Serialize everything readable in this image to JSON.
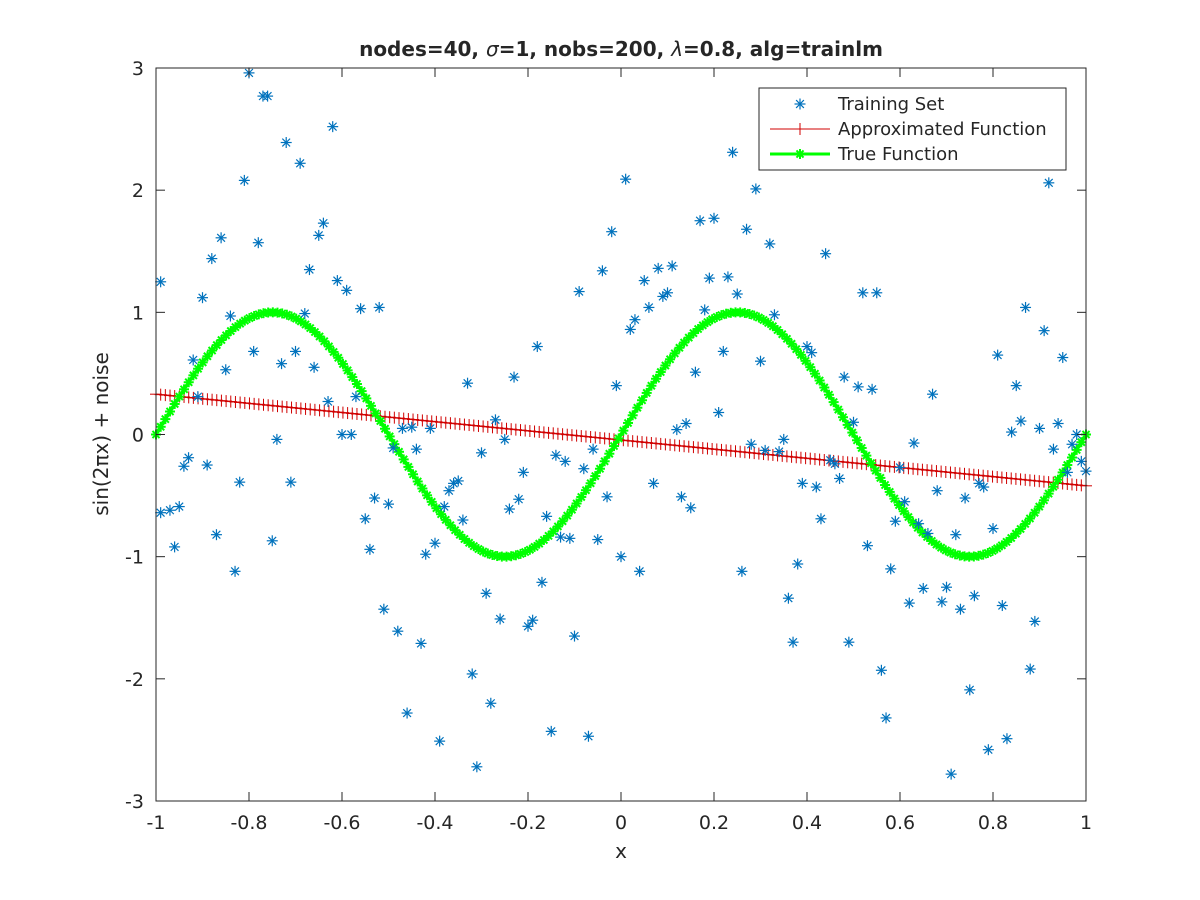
{
  "chart_data": {
    "type": "scatter",
    "title": "nodes=40, σ=1, nobs=200, λ=0.8, alg=trainlm",
    "title_parts": {
      "p1": "nodes=40, ",
      "sigma": "σ",
      "p2": "=1, nobs=200, ",
      "lambda": "λ",
      "p3": "=0.8, alg=trainlm"
    },
    "xlabel": "x",
    "ylabel": "sin(2πx) + noise",
    "xlim": [
      -1,
      1
    ],
    "ylim": [
      -3,
      3
    ],
    "x_ticks": [
      "-1",
      "-0.8",
      "-0.6",
      "-0.4",
      "-0.2",
      "0",
      "0.2",
      "0.4",
      "0.6",
      "0.8",
      "1"
    ],
    "y_ticks": [
      "-3",
      "-2",
      "-1",
      "0",
      "1",
      "2",
      "3"
    ],
    "grid": false,
    "legend_position": "top-right",
    "series": [
      {
        "name": "Training Set",
        "kind": "scatter",
        "marker": "asterisk",
        "color": "#0072BD",
        "points": [
          [
            -0.99,
            -0.64
          ],
          [
            -0.99,
            1.25
          ],
          [
            -0.97,
            -0.62
          ],
          [
            -0.96,
            -0.92
          ],
          [
            -0.95,
            -0.59
          ],
          [
            -0.94,
            -0.26
          ],
          [
            -0.93,
            -0.19
          ],
          [
            -0.92,
            0.61
          ],
          [
            -0.91,
            0.31
          ],
          [
            -0.9,
            1.12
          ],
          [
            -0.89,
            -0.25
          ],
          [
            -0.88,
            1.44
          ],
          [
            -0.87,
            -0.82
          ],
          [
            -0.86,
            1.61
          ],
          [
            -0.85,
            0.53
          ],
          [
            -0.84,
            0.97
          ],
          [
            -0.83,
            -1.12
          ],
          [
            -0.82,
            -0.39
          ],
          [
            -0.81,
            2.08
          ],
          [
            -0.8,
            2.96
          ],
          [
            -0.79,
            0.68
          ],
          [
            -0.78,
            1.57
          ],
          [
            -0.77,
            2.77
          ],
          [
            -0.76,
            2.77
          ],
          [
            -0.75,
            -0.87
          ],
          [
            -0.74,
            -0.04
          ],
          [
            -0.73,
            0.58
          ],
          [
            -0.72,
            2.39
          ],
          [
            -0.71,
            -0.39
          ],
          [
            -0.7,
            0.68
          ],
          [
            -0.69,
            2.22
          ],
          [
            -0.68,
            0.99
          ],
          [
            -0.67,
            1.35
          ],
          [
            -0.66,
            0.55
          ],
          [
            -0.65,
            1.63
          ],
          [
            -0.64,
            1.73
          ],
          [
            -0.63,
            0.27
          ],
          [
            -0.62,
            2.52
          ],
          [
            -0.61,
            1.26
          ],
          [
            -0.6,
            0.0
          ],
          [
            -0.59,
            1.18
          ],
          [
            -0.58,
            0.0
          ],
          [
            -0.57,
            0.31
          ],
          [
            -0.56,
            1.03
          ],
          [
            -0.55,
            -0.69
          ],
          [
            -0.54,
            -0.94
          ],
          [
            -0.53,
            -0.52
          ],
          [
            -0.52,
            1.04
          ],
          [
            -0.51,
            -1.43
          ],
          [
            -0.5,
            -0.57
          ],
          [
            -0.49,
            -0.11
          ],
          [
            -0.48,
            -1.61
          ],
          [
            -0.47,
            0.05
          ],
          [
            -0.46,
            -2.28
          ],
          [
            -0.45,
            0.06
          ],
          [
            -0.44,
            -0.12
          ],
          [
            -0.43,
            -1.71
          ],
          [
            -0.42,
            -0.98
          ],
          [
            -0.41,
            0.05
          ],
          [
            -0.4,
            -0.89
          ],
          [
            -0.39,
            -2.51
          ],
          [
            -0.38,
            -0.59
          ],
          [
            -0.37,
            -0.46
          ],
          [
            -0.36,
            -0.4
          ],
          [
            -0.35,
            -0.38
          ],
          [
            -0.34,
            -0.7
          ],
          [
            -0.33,
            0.42
          ],
          [
            -0.32,
            -1.96
          ],
          [
            -0.31,
            -2.72
          ],
          [
            -0.3,
            -0.15
          ],
          [
            -0.29,
            -1.3
          ],
          [
            -0.28,
            -2.2
          ],
          [
            -0.27,
            0.12
          ],
          [
            -0.26,
            -1.51
          ],
          [
            -0.25,
            -0.04
          ],
          [
            -0.24,
            -0.61
          ],
          [
            -0.23,
            0.47
          ],
          [
            -0.22,
            -0.53
          ],
          [
            -0.21,
            -0.31
          ],
          [
            -0.2,
            -1.57
          ],
          [
            -0.19,
            -1.52
          ],
          [
            -0.18,
            0.72
          ],
          [
            -0.17,
            -1.21
          ],
          [
            -0.16,
            -0.67
          ],
          [
            -0.15,
            -2.43
          ],
          [
            -0.14,
            -0.17
          ],
          [
            -0.13,
            -0.84
          ],
          [
            -0.12,
            -0.22
          ],
          [
            -0.11,
            -0.85
          ],
          [
            -0.1,
            -1.65
          ],
          [
            -0.09,
            1.17
          ],
          [
            -0.08,
            -0.28
          ],
          [
            -0.07,
            -2.47
          ],
          [
            -0.06,
            -0.12
          ],
          [
            -0.05,
            -0.86
          ],
          [
            -0.04,
            1.34
          ],
          [
            -0.03,
            -0.51
          ],
          [
            -0.02,
            1.66
          ],
          [
            -0.01,
            0.4
          ],
          [
            0.0,
            -1.0
          ],
          [
            0.01,
            2.09
          ],
          [
            0.02,
            0.86
          ],
          [
            0.03,
            0.94
          ],
          [
            0.04,
            -1.12
          ],
          [
            0.05,
            1.26
          ],
          [
            0.06,
            1.04
          ],
          [
            0.07,
            -0.4
          ],
          [
            0.08,
            1.36
          ],
          [
            0.09,
            1.13
          ],
          [
            0.1,
            1.16
          ],
          [
            0.11,
            1.38
          ],
          [
            0.12,
            0.04
          ],
          [
            0.13,
            -0.51
          ],
          [
            0.14,
            0.09
          ],
          [
            0.15,
            -0.6
          ],
          [
            0.16,
            0.51
          ],
          [
            0.17,
            1.75
          ],
          [
            0.18,
            1.02
          ],
          [
            0.19,
            1.28
          ],
          [
            0.2,
            1.77
          ],
          [
            0.21,
            0.18
          ],
          [
            0.22,
            0.68
          ],
          [
            0.23,
            1.29
          ],
          [
            0.24,
            2.31
          ],
          [
            0.25,
            1.15
          ],
          [
            0.26,
            -1.12
          ],
          [
            0.27,
            1.68
          ],
          [
            0.28,
            -0.08
          ],
          [
            0.29,
            2.01
          ],
          [
            0.3,
            0.6
          ],
          [
            0.31,
            -0.13
          ],
          [
            0.32,
            1.56
          ],
          [
            0.33,
            0.98
          ],
          [
            0.34,
            -0.14
          ],
          [
            0.35,
            -0.04
          ],
          [
            0.36,
            -1.34
          ],
          [
            0.37,
            -1.7
          ],
          [
            0.38,
            -1.06
          ],
          [
            0.39,
            -0.4
          ],
          [
            0.4,
            0.72
          ],
          [
            0.41,
            0.67
          ],
          [
            0.42,
            -0.43
          ],
          [
            0.43,
            -0.69
          ],
          [
            0.44,
            1.48
          ],
          [
            0.45,
            -0.21
          ],
          [
            0.46,
            -0.24
          ],
          [
            0.47,
            -0.36
          ],
          [
            0.48,
            0.47
          ],
          [
            0.49,
            -1.7
          ],
          [
            0.5,
            0.1
          ],
          [
            0.51,
            0.39
          ],
          [
            0.52,
            1.16
          ],
          [
            0.53,
            -0.91
          ],
          [
            0.54,
            0.37
          ],
          [
            0.55,
            1.16
          ],
          [
            0.56,
            -1.93
          ],
          [
            0.57,
            -2.32
          ],
          [
            0.58,
            -1.1
          ],
          [
            0.59,
            -0.71
          ],
          [
            0.6,
            -0.27
          ],
          [
            0.61,
            -0.55
          ],
          [
            0.62,
            -1.38
          ],
          [
            0.63,
            -0.07
          ],
          [
            0.64,
            -0.73
          ],
          [
            0.65,
            -1.26
          ],
          [
            0.66,
            -0.81
          ],
          [
            0.67,
            0.33
          ],
          [
            0.68,
            -0.46
          ],
          [
            0.69,
            -1.37
          ],
          [
            0.7,
            -1.25
          ],
          [
            0.71,
            -2.78
          ],
          [
            0.72,
            -0.82
          ],
          [
            0.73,
            -1.43
          ],
          [
            0.74,
            -0.52
          ],
          [
            0.75,
            -2.09
          ],
          [
            0.76,
            -1.32
          ],
          [
            0.77,
            -0.4
          ],
          [
            0.78,
            -0.43
          ],
          [
            0.79,
            -2.58
          ],
          [
            0.8,
            -0.77
          ],
          [
            0.81,
            0.65
          ],
          [
            0.82,
            -1.4
          ],
          [
            0.83,
            -2.49
          ],
          [
            0.84,
            0.02
          ],
          [
            0.85,
            0.4
          ],
          [
            0.86,
            0.11
          ],
          [
            0.87,
            1.04
          ],
          [
            0.88,
            -1.92
          ],
          [
            0.89,
            -1.53
          ],
          [
            0.9,
            0.05
          ],
          [
            0.91,
            0.85
          ],
          [
            0.92,
            2.06
          ],
          [
            0.93,
            -0.12
          ],
          [
            0.94,
            0.09
          ],
          [
            0.95,
            0.63
          ],
          [
            0.96,
            -0.31
          ],
          [
            0.97,
            -0.08
          ],
          [
            0.98,
            0.0
          ],
          [
            0.99,
            -0.22
          ],
          [
            1.0,
            -0.3
          ]
        ]
      },
      {
        "name": "Approximated Function",
        "kind": "line",
        "marker": "plus",
        "color": "#D00000",
        "x_start": -1,
        "x_end": 1,
        "y_start": 0.33,
        "y_end": -0.42,
        "n_points": 200
      },
      {
        "name": "True Function",
        "kind": "line",
        "marker": "asterisk",
        "color": "#00FF00",
        "formula": "sin(2*pi*x)",
        "x_start": -1,
        "x_end": 1,
        "n_points": 200
      }
    ]
  }
}
